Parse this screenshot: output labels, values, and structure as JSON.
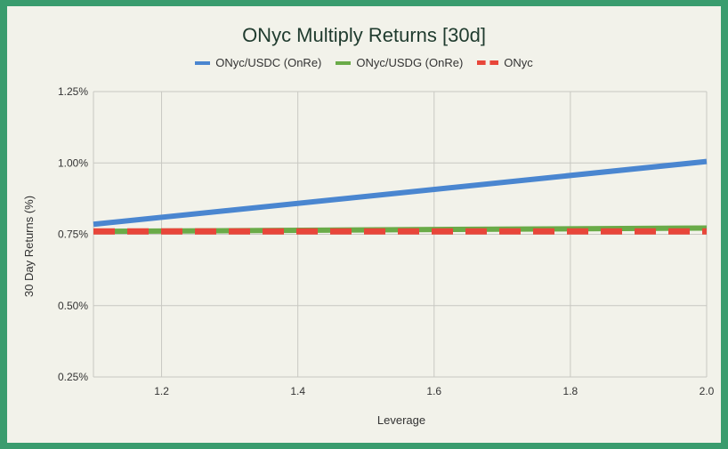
{
  "chart_data": {
    "type": "line",
    "title": "ONyc Multiply Returns [30d]",
    "xlabel": "Leverage",
    "ylabel": "30 Day Returns (%)",
    "xlim": [
      1.1,
      2.0
    ],
    "ylim": [
      0.25,
      1.25
    ],
    "xticks": [
      1.2,
      1.4,
      1.6,
      1.8,
      2.0
    ],
    "xtick_labels": [
      "1.2",
      "1.4",
      "1.6",
      "1.8",
      "2.0"
    ],
    "yticks": [
      0.25,
      0.5,
      0.75,
      1.0,
      1.25
    ],
    "ytick_labels": [
      "0.25%",
      "0.50%",
      "0.75%",
      "1.00%",
      "1.25%"
    ],
    "grid": true,
    "legend_position": "top-center",
    "series": [
      {
        "name": "ONyc/USDC (OnRe)",
        "color": "#4a86d0",
        "style": "solid",
        "x": [
          1.1,
          2.0
        ],
        "y": [
          0.785,
          1.005
        ]
      },
      {
        "name": "ONyc/USDG (OnRe)",
        "color": "#6aab48",
        "style": "solid",
        "x": [
          1.1,
          2.0
        ],
        "y": [
          0.76,
          0.772
        ]
      },
      {
        "name": "ONyc",
        "color": "#e8463a",
        "style": "dashed",
        "x": [
          1.1,
          2.0
        ],
        "y": [
          0.76,
          0.76
        ]
      }
    ]
  }
}
